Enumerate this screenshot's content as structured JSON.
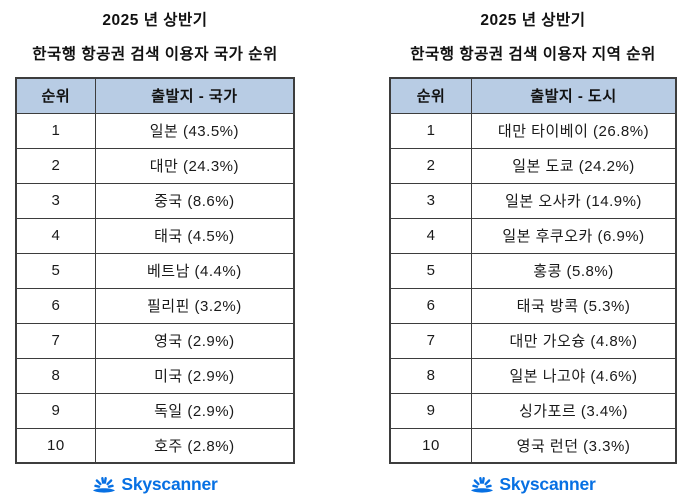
{
  "colors": {
    "header_bg": "#b8cce4",
    "table_border": "#3d3d3d",
    "text": "#1a1a1a",
    "skyscanner_blue": "#0770e3",
    "background": "#ffffff"
  },
  "footer": {
    "logo_text": "Skyscanner",
    "logo_icon": "sunrise-rays-icon"
  },
  "chart_data": [
    {
      "type": "table",
      "title_line1": "2025 년 상반기",
      "title_line2": "한국행 항공권 검색 이용자 국가 순위",
      "columns": [
        "순위",
        "출발지 - 국가"
      ],
      "rows": [
        [
          "1",
          "일본 (43.5%)"
        ],
        [
          "2",
          "대만 (24.3%)"
        ],
        [
          "3",
          "중국 (8.6%)"
        ],
        [
          "4",
          "태국 (4.5%)"
        ],
        [
          "5",
          "베트남 (4.4%)"
        ],
        [
          "6",
          "필리핀 (3.2%)"
        ],
        [
          "7",
          "영국 (2.9%)"
        ],
        [
          "8",
          "미국 (2.9%)"
        ],
        [
          "9",
          "독일 (2.9%)"
        ],
        [
          "10",
          "호주 (2.8%)"
        ]
      ],
      "entries": [
        {
          "rank": 1,
          "origin": "일본",
          "pct": 43.5
        },
        {
          "rank": 2,
          "origin": "대만",
          "pct": 24.3
        },
        {
          "rank": 3,
          "origin": "중국",
          "pct": 8.6
        },
        {
          "rank": 4,
          "origin": "태국",
          "pct": 4.5
        },
        {
          "rank": 5,
          "origin": "베트남",
          "pct": 4.4
        },
        {
          "rank": 6,
          "origin": "필리핀",
          "pct": 3.2
        },
        {
          "rank": 7,
          "origin": "영국",
          "pct": 2.9
        },
        {
          "rank": 8,
          "origin": "미국",
          "pct": 2.9
        },
        {
          "rank": 9,
          "origin": "독일",
          "pct": 2.9
        },
        {
          "rank": 10,
          "origin": "호주",
          "pct": 2.8
        }
      ]
    },
    {
      "type": "table",
      "title_line1": "2025 년 상반기",
      "title_line2": "한국행 항공권 검색 이용자 지역 순위",
      "columns": [
        "순위",
        "출발지 - 도시"
      ],
      "rows": [
        [
          "1",
          "대만 타이베이 (26.8%)"
        ],
        [
          "2",
          "일본 도쿄 (24.2%)"
        ],
        [
          "3",
          "일본 오사카 (14.9%)"
        ],
        [
          "4",
          "일본 후쿠오카 (6.9%)"
        ],
        [
          "5",
          "홍콩 (5.8%)"
        ],
        [
          "6",
          "태국 방콕 (5.3%)"
        ],
        [
          "7",
          "대만 가오슝 (4.8%)"
        ],
        [
          "8",
          "일본 나고야 (4.6%)"
        ],
        [
          "9",
          "싱가포르 (3.4%)"
        ],
        [
          "10",
          "영국 런던 (3.3%)"
        ]
      ],
      "entries": [
        {
          "rank": 1,
          "origin": "대만 타이베이",
          "pct": 26.8
        },
        {
          "rank": 2,
          "origin": "일본 도쿄",
          "pct": 24.2
        },
        {
          "rank": 3,
          "origin": "일본 오사카",
          "pct": 14.9
        },
        {
          "rank": 4,
          "origin": "일본 후쿠오카",
          "pct": 6.9
        },
        {
          "rank": 5,
          "origin": "홍콩",
          "pct": 5.8
        },
        {
          "rank": 6,
          "origin": "태국 방콕",
          "pct": 5.3
        },
        {
          "rank": 7,
          "origin": "대만 가오슝",
          "pct": 4.8
        },
        {
          "rank": 8,
          "origin": "일본 나고야",
          "pct": 4.6
        },
        {
          "rank": 9,
          "origin": "싱가포르",
          "pct": 3.4
        },
        {
          "rank": 10,
          "origin": "영국 런던",
          "pct": 3.3
        }
      ]
    }
  ]
}
